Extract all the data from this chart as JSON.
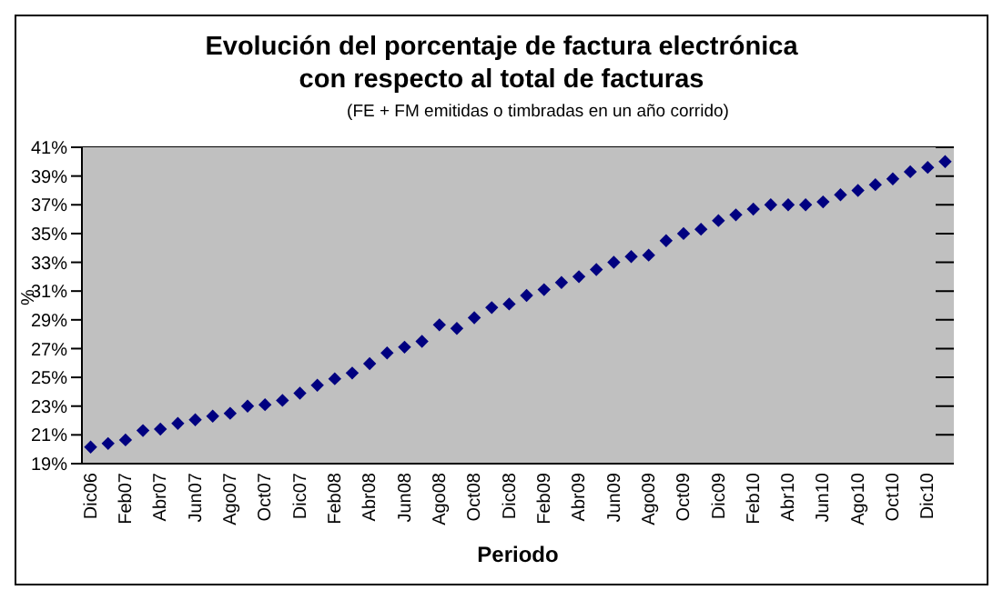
{
  "chart_data": {
    "type": "scatter",
    "title": "Evolución del porcentaje de factura electrónica con respecto al total de facturas",
    "subtitle": "(FE + FM emitidas o timbradas en un año corrido)",
    "xlabel": "Periodo",
    "ylabel": "%",
    "categories": [
      "Dic06",
      null,
      "Feb07",
      null,
      "Abr07",
      null,
      "Jun07",
      null,
      "Ago07",
      null,
      "Oct07",
      null,
      "Dic07",
      null,
      "Feb08",
      null,
      "Abr08",
      null,
      "Jun08",
      null,
      "Ago08",
      null,
      "Oct08",
      null,
      "Dic08",
      null,
      "Feb09",
      null,
      "Abr09",
      null,
      "Jun09",
      null,
      "Ago09",
      null,
      "Oct09",
      null,
      "Dic09",
      null,
      "Feb10",
      null,
      "Abr10",
      null,
      "Jun10",
      null,
      "Ago10",
      null,
      "Oct10",
      null,
      "Dic10",
      null
    ],
    "series": [
      {
        "color": "#000080",
        "values": [
          20.15,
          20.4,
          20.65,
          21.3,
          21.4,
          21.8,
          22.05,
          22.3,
          22.5,
          23.0,
          23.1,
          23.4,
          23.9,
          24.45,
          24.9,
          25.3,
          25.95,
          26.7,
          27.1,
          27.5,
          28.65,
          28.4,
          29.15,
          29.85,
          30.1,
          30.7,
          31.1,
          31.6,
          32.0,
          32.5,
          33.0,
          33.4,
          33.5,
          34.5,
          35.0,
          35.3,
          35.9,
          36.3,
          36.7,
          37.0,
          37.0,
          37.0,
          37.2,
          37.7,
          38.0,
          38.4,
          38.8,
          39.3,
          39.6,
          40.0
        ]
      }
    ],
    "ylim": [
      19,
      41
    ],
    "yticks": [
      {
        "value": 19,
        "label": "19%"
      },
      {
        "value": 21,
        "label": "21%"
      },
      {
        "value": 23,
        "label": "23%"
      },
      {
        "value": 25,
        "label": "25%"
      },
      {
        "value": 27,
        "label": "27%"
      },
      {
        "value": 29,
        "label": "29%"
      },
      {
        "value": 31,
        "label": "31%"
      },
      {
        "value": 33,
        "label": "33%"
      },
      {
        "value": 35,
        "label": "35%"
      },
      {
        "value": 37,
        "label": "37%"
      },
      {
        "value": 39,
        "label": "39%"
      },
      {
        "value": 41,
        "label": "41%"
      }
    ],
    "grid": "y",
    "marker": "diamond",
    "legend": false
  }
}
